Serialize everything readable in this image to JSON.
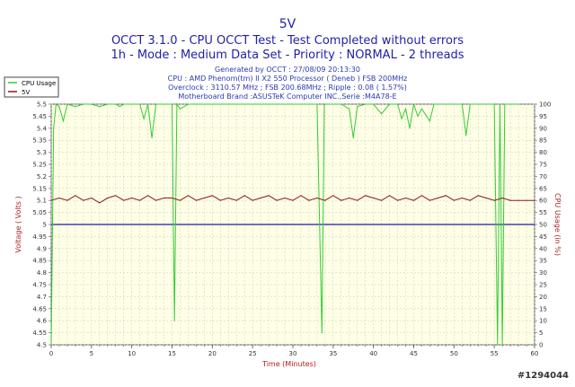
{
  "colors": {
    "title": "#1f1fa8",
    "info": "#2a3bb0",
    "axis_label": "#b02020",
    "plot_bg": "#ffffe6",
    "grid": "#c8c8c8",
    "cpu_series": "#33cc33",
    "voltage_series": "#8b1a1a",
    "reference_line": "#1a1aa0"
  },
  "legend": {
    "items": [
      {
        "label": "CPU Usage",
        "color": "#33cc33"
      },
      {
        "label": "5V",
        "color": "#8b1a1a"
      }
    ]
  },
  "watermark": "#1294044",
  "chart_data": {
    "type": "line",
    "title": "5V",
    "subtitle_lines": [
      "OCCT 3.1.0 - CPU OCCT Test - Test Completed without errors",
      "1h - Mode : Medium Data Set - Priority : NORMAL - 2 threads"
    ],
    "info_lines": [
      "Generated by OCCT : 27/08/09 20:13:30",
      "CPU : AMD Phenom(tm) II X2 550 Processor ( Deneb ) FSB 200MHz",
      "Overclock : 3110.57 MHz ; FSB 200.68MHz ; Ripple : 0.08 ( 1.57%)",
      "Motherboard Brand :ASUSTeK Computer INC.,Serie :M4A78-E"
    ],
    "xlabel": "Time (Minutes)",
    "ylabel": "Voltage ( Volts )",
    "y2label": "CPU Usage (in %)",
    "xlim": [
      0,
      60
    ],
    "ylim": [
      4.5,
      5.5
    ],
    "y2lim": [
      0,
      100
    ],
    "x_ticks": [
      "0",
      "5",
      "10",
      "15",
      "20",
      "25",
      "30",
      "35",
      "40",
      "45",
      "50",
      "55",
      "60"
    ],
    "x_minor_ticks": [
      "0",
      "1",
      "2",
      "3",
      "4",
      "5",
      "6",
      "7",
      "8",
      "9",
      "10",
      "11",
      "12",
      "13",
      "14",
      "15",
      "16",
      "17",
      "18",
      "19",
      "20",
      "21",
      "22",
      "23",
      "24",
      "25",
      "26",
      "27",
      "28",
      "29",
      "30",
      "31",
      "32",
      "33",
      "34",
      "35",
      "36",
      "37",
      "38",
      "39",
      "40",
      "41",
      "42",
      "43",
      "44",
      "45",
      "46",
      "47",
      "48",
      "49",
      "50",
      "51",
      "52",
      "53",
      "54",
      "55",
      "56",
      "57",
      "58",
      "59",
      "60"
    ],
    "y_ticks": [
      "5.5",
      "5.45",
      "5.4",
      "5.35",
      "5.3",
      "5.25",
      "5.2",
      "5.15",
      "5.1",
      "5.05",
      "5",
      "4.95",
      "4.9",
      "4.85",
      "4.8",
      "4.75",
      "4.7",
      "4.65",
      "4.6",
      "4.55",
      "4.5"
    ],
    "y2_ticks": [
      "100",
      "95",
      "90",
      "85",
      "80",
      "75",
      "70",
      "65",
      "60",
      "55",
      "50",
      "45",
      "40",
      "35",
      "30",
      "25",
      "20",
      "15",
      "10",
      "5",
      "0"
    ],
    "grid": true,
    "legend_position": "top-left",
    "reference_line": {
      "y": 5.0
    },
    "series": [
      {
        "name": "CPU Usage",
        "axis": "right",
        "x": [
          0,
          0.3,
          0.6,
          1,
          1.5,
          2,
          3,
          4,
          5,
          6,
          7,
          8,
          8.5,
          9,
          10,
          11,
          11.5,
          12,
          12.5,
          13,
          14,
          15,
          15.3,
          15.6,
          16,
          17,
          18,
          20,
          22,
          24,
          26,
          28,
          30,
          32,
          33,
          33.6,
          33.9,
          34.3,
          35,
          36,
          37,
          37.5,
          38,
          39,
          40,
          41,
          42,
          43,
          43.5,
          44,
          44.5,
          45,
          45.5,
          46,
          47,
          47.5,
          48,
          49,
          50,
          51,
          51.5,
          52,
          53,
          54,
          55,
          55.4,
          55.7,
          56,
          56.3,
          57,
          58
        ],
        "values": [
          0,
          90,
          100,
          99,
          93,
          100,
          99,
          100,
          100,
          99,
          100,
          100,
          99,
          100,
          100,
          100,
          94,
          100,
          86,
          100,
          100,
          100,
          10,
          100,
          98,
          100,
          100,
          100,
          100,
          100,
          100,
          100,
          100,
          100,
          100,
          5,
          100,
          100,
          100,
          100,
          98,
          86,
          99,
          100,
          100,
          96,
          100,
          100,
          94,
          98,
          90,
          100,
          95,
          98,
          93,
          100,
          100,
          100,
          100,
          100,
          87,
          100,
          100,
          100,
          100,
          0,
          100,
          0,
          100,
          100,
          100
        ]
      },
      {
        "name": "5V",
        "axis": "left",
        "x": [
          0,
          1,
          2,
          3,
          4,
          5,
          6,
          7,
          8,
          9,
          10,
          11,
          12,
          13,
          14,
          15,
          16,
          17,
          18,
          19,
          20,
          21,
          22,
          23,
          24,
          25,
          26,
          27,
          28,
          29,
          30,
          31,
          32,
          33,
          34,
          35,
          36,
          37,
          38,
          39,
          40,
          41,
          42,
          43,
          44,
          45,
          46,
          47,
          48,
          49,
          50,
          51,
          52,
          53,
          54,
          55,
          56,
          57,
          58,
          59,
          60
        ],
        "values": [
          5.1,
          5.11,
          5.1,
          5.12,
          5.1,
          5.11,
          5.09,
          5.11,
          5.12,
          5.1,
          5.11,
          5.1,
          5.12,
          5.1,
          5.11,
          5.11,
          5.1,
          5.12,
          5.1,
          5.11,
          5.12,
          5.1,
          5.11,
          5.1,
          5.12,
          5.1,
          5.11,
          5.12,
          5.1,
          5.11,
          5.1,
          5.12,
          5.1,
          5.11,
          5.1,
          5.12,
          5.1,
          5.11,
          5.1,
          5.12,
          5.11,
          5.1,
          5.12,
          5.1,
          5.11,
          5.1,
          5.12,
          5.1,
          5.11,
          5.12,
          5.1,
          5.11,
          5.1,
          5.12,
          5.11,
          5.1,
          5.11,
          5.1,
          5.1,
          5.1,
          5.1
        ]
      }
    ]
  }
}
